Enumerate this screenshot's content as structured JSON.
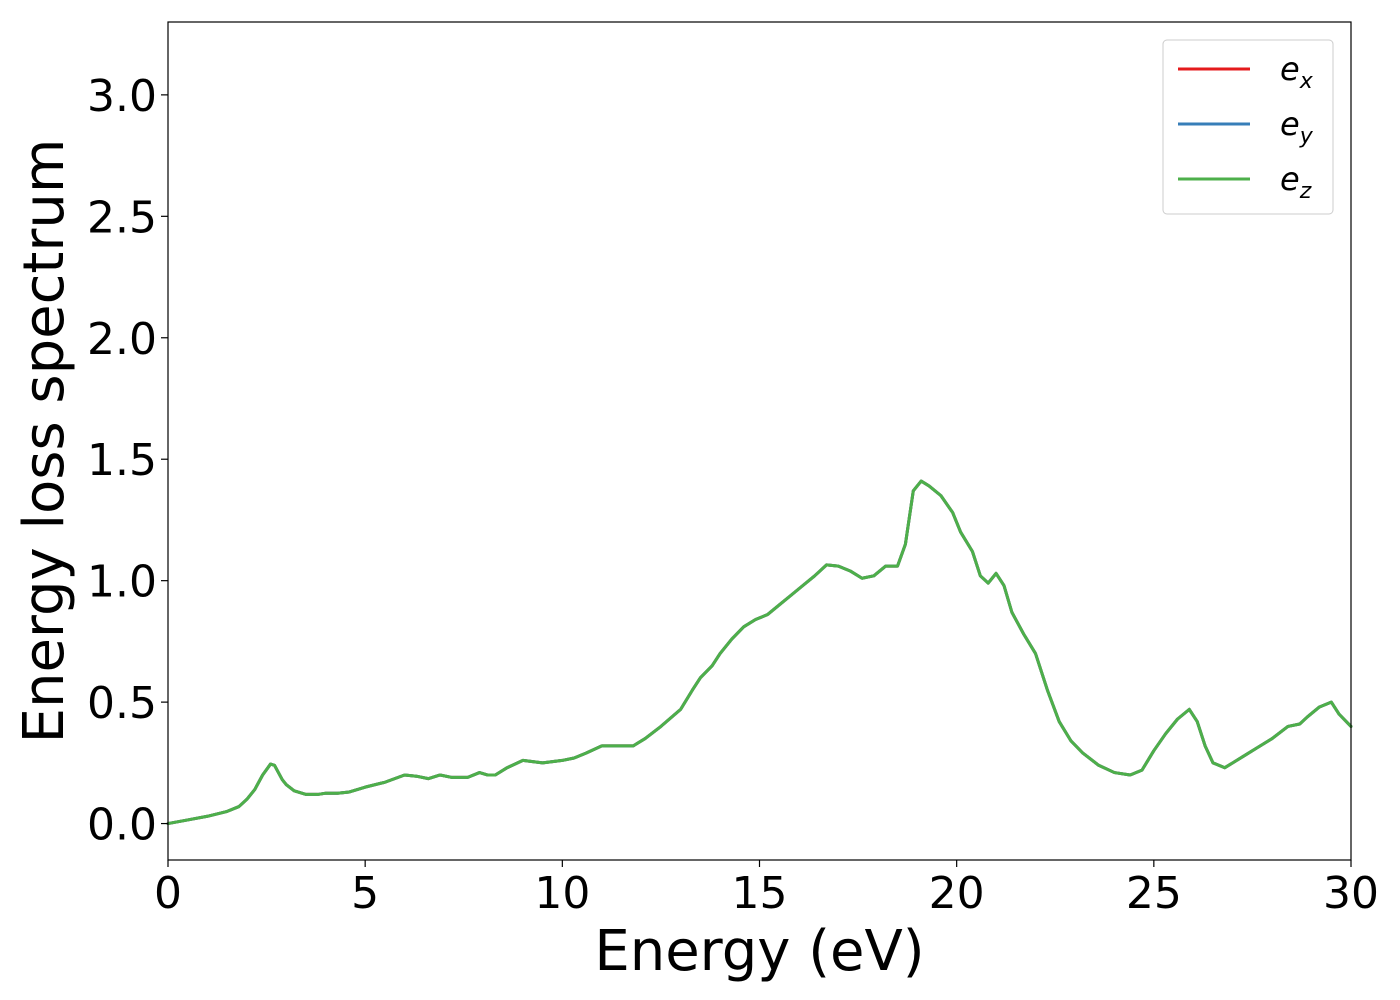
{
  "chart_data": {
    "type": "line",
    "xlabel": "Energy (eV)",
    "ylabel": "Energy loss spectrum",
    "xlim": [
      0,
      30
    ],
    "ylim": [
      -0.15,
      3.3
    ],
    "xticks": [
      0,
      5,
      10,
      15,
      20,
      25,
      30
    ],
    "xtick_labels": [
      "0",
      "5",
      "10",
      "15",
      "20",
      "25",
      "30"
    ],
    "yticks": [
      0.0,
      0.5,
      1.0,
      1.5,
      2.0,
      2.5,
      3.0
    ],
    "ytick_labels": [
      "0.0",
      "0.5",
      "1.0",
      "1.5",
      "2.0",
      "2.5",
      "3.0"
    ],
    "grid": false,
    "legend_position": "top-right",
    "series": [
      {
        "name": "e",
        "subscript": "x",
        "color": "#e41a1c",
        "x": [
          0,
          0.5,
          1.0,
          1.5,
          1.8,
          2.0,
          2.2,
          2.4,
          2.6,
          2.7,
          2.8,
          2.9,
          3.0,
          3.2,
          3.5,
          3.8,
          4.0,
          4.3,
          4.6,
          4.8,
          5.0,
          5.5,
          6.0,
          6.3,
          6.6,
          6.9,
          7.2,
          7.6,
          7.9,
          8.1,
          8.3,
          8.6,
          9.0,
          9.5,
          10.0,
          10.3,
          10.6,
          11.0,
          11.4,
          11.8,
          12.1,
          12.5,
          13.0,
          13.3,
          13.5,
          13.8,
          14.0,
          14.3,
          14.6,
          14.9,
          15.2,
          15.5,
          15.8,
          16.1,
          16.4,
          16.7,
          17.0,
          17.3,
          17.6,
          17.9,
          18.2,
          18.5,
          18.7,
          18.9,
          19.1,
          19.3,
          19.6,
          19.9,
          20.1,
          20.4,
          20.6,
          20.8,
          21.0,
          21.2,
          21.4,
          21.7,
          22.0,
          22.3,
          22.6,
          22.9,
          23.2,
          23.6,
          24.0,
          24.4,
          24.7,
          25.0,
          25.3,
          25.6,
          25.9,
          26.1,
          26.3,
          26.5,
          26.8,
          27.0,
          27.3,
          27.6,
          28.0,
          28.4,
          28.7,
          28.9,
          29.2,
          29.5,
          29.7,
          30.0
        ],
        "y": [
          0.0,
          0.015,
          0.03,
          0.05,
          0.07,
          0.1,
          0.14,
          0.2,
          0.245,
          0.24,
          0.21,
          0.18,
          0.16,
          0.135,
          0.12,
          0.12,
          0.125,
          0.125,
          0.13,
          0.14,
          0.15,
          0.17,
          0.2,
          0.195,
          0.185,
          0.2,
          0.19,
          0.19,
          0.21,
          0.2,
          0.2,
          0.23,
          0.26,
          0.25,
          0.26,
          0.27,
          0.29,
          0.32,
          0.32,
          0.32,
          0.35,
          0.4,
          0.47,
          0.55,
          0.6,
          0.65,
          0.7,
          0.76,
          0.81,
          0.84,
          0.86,
          0.9,
          0.94,
          0.98,
          1.02,
          1.065,
          1.06,
          1.04,
          1.01,
          1.02,
          1.06,
          1.06,
          1.15,
          1.37,
          1.41,
          1.39,
          1.35,
          1.28,
          1.2,
          1.12,
          1.02,
          0.99,
          1.03,
          0.98,
          0.87,
          0.78,
          0.7,
          0.55,
          0.42,
          0.34,
          0.29,
          0.24,
          0.21,
          0.2,
          0.22,
          0.3,
          0.37,
          0.43,
          0.47,
          0.42,
          0.32,
          0.25,
          0.23,
          0.25,
          0.28,
          0.31,
          0.35,
          0.4,
          0.41,
          0.44,
          0.48,
          0.5,
          0.45,
          0.4
        ]
      },
      {
        "name": "e",
        "subscript": "y",
        "color": "#377eb8",
        "x": [
          0,
          0.5,
          1.0,
          1.5,
          1.8,
          2.0,
          2.2,
          2.4,
          2.6,
          2.7,
          2.8,
          2.9,
          3.0,
          3.2,
          3.5,
          3.8,
          4.0,
          4.3,
          4.6,
          4.8,
          5.0,
          5.5,
          6.0,
          6.3,
          6.6,
          6.9,
          7.2,
          7.6,
          7.9,
          8.1,
          8.3,
          8.6,
          9.0,
          9.5,
          10.0,
          10.3,
          10.6,
          11.0,
          11.4,
          11.8,
          12.1,
          12.5,
          13.0,
          13.3,
          13.5,
          13.8,
          14.0,
          14.3,
          14.6,
          14.9,
          15.2,
          15.5,
          15.8,
          16.1,
          16.4,
          16.7,
          17.0,
          17.3,
          17.6,
          17.9,
          18.2,
          18.5,
          18.7,
          18.9,
          19.1,
          19.3,
          19.6,
          19.9,
          20.1,
          20.4,
          20.6,
          20.8,
          21.0,
          21.2,
          21.4,
          21.7,
          22.0,
          22.3,
          22.6,
          22.9,
          23.2,
          23.6,
          24.0,
          24.4,
          24.7,
          25.0,
          25.3,
          25.6,
          25.9,
          26.1,
          26.3,
          26.5,
          26.8,
          27.0,
          27.3,
          27.6,
          28.0,
          28.4,
          28.7,
          28.9,
          29.2,
          29.5,
          29.7,
          30.0
        ],
        "y": [
          0.0,
          0.015,
          0.03,
          0.05,
          0.07,
          0.1,
          0.14,
          0.2,
          0.245,
          0.24,
          0.21,
          0.18,
          0.16,
          0.135,
          0.12,
          0.12,
          0.125,
          0.125,
          0.13,
          0.14,
          0.15,
          0.17,
          0.2,
          0.195,
          0.185,
          0.2,
          0.19,
          0.19,
          0.21,
          0.2,
          0.2,
          0.23,
          0.26,
          0.25,
          0.26,
          0.27,
          0.29,
          0.32,
          0.32,
          0.32,
          0.35,
          0.4,
          0.47,
          0.55,
          0.6,
          0.65,
          0.7,
          0.76,
          0.81,
          0.84,
          0.86,
          0.9,
          0.94,
          0.98,
          1.02,
          1.065,
          1.06,
          1.04,
          1.01,
          1.02,
          1.06,
          1.06,
          1.15,
          1.37,
          1.41,
          1.39,
          1.35,
          1.28,
          1.2,
          1.12,
          1.02,
          0.99,
          1.03,
          0.98,
          0.87,
          0.78,
          0.7,
          0.55,
          0.42,
          0.34,
          0.29,
          0.24,
          0.21,
          0.2,
          0.22,
          0.3,
          0.37,
          0.43,
          0.47,
          0.42,
          0.32,
          0.25,
          0.23,
          0.25,
          0.28,
          0.31,
          0.35,
          0.4,
          0.41,
          0.44,
          0.48,
          0.5,
          0.45,
          0.4
        ]
      },
      {
        "name": "e",
        "subscript": "z",
        "color": "#4daf4a",
        "x": [
          0,
          0.5,
          1.0,
          1.5,
          1.8,
          2.0,
          2.2,
          2.4,
          2.6,
          2.7,
          2.8,
          2.9,
          3.0,
          3.2,
          3.5,
          3.8,
          4.0,
          4.3,
          4.6,
          4.8,
          5.0,
          5.5,
          6.0,
          6.3,
          6.6,
          6.9,
          7.2,
          7.6,
          7.9,
          8.1,
          8.3,
          8.6,
          9.0,
          9.5,
          10.0,
          10.3,
          10.6,
          11.0,
          11.4,
          11.8,
          12.1,
          12.5,
          13.0,
          13.3,
          13.5,
          13.8,
          14.0,
          14.3,
          14.6,
          14.9,
          15.2,
          15.5,
          15.8,
          16.1,
          16.4,
          16.7,
          17.0,
          17.3,
          17.6,
          17.9,
          18.2,
          18.5,
          18.7,
          18.9,
          19.1,
          19.3,
          19.6,
          19.9,
          20.1,
          20.4,
          20.6,
          20.8,
          21.0,
          21.2,
          21.4,
          21.7,
          22.0,
          22.3,
          22.6,
          22.9,
          23.2,
          23.6,
          24.0,
          24.4,
          24.7,
          25.0,
          25.3,
          25.6,
          25.9,
          26.1,
          26.3,
          26.5,
          26.8,
          27.0,
          27.3,
          27.6,
          28.0,
          28.4,
          28.7,
          28.9,
          29.2,
          29.5,
          29.7,
          30.0
        ],
        "y": [
          0.0,
          0.015,
          0.03,
          0.05,
          0.07,
          0.1,
          0.14,
          0.2,
          0.245,
          0.24,
          0.21,
          0.18,
          0.16,
          0.135,
          0.12,
          0.12,
          0.125,
          0.125,
          0.13,
          0.14,
          0.15,
          0.17,
          0.2,
          0.195,
          0.185,
          0.2,
          0.19,
          0.19,
          0.21,
          0.2,
          0.2,
          0.23,
          0.26,
          0.25,
          0.26,
          0.27,
          0.29,
          0.32,
          0.32,
          0.32,
          0.35,
          0.4,
          0.47,
          0.55,
          0.6,
          0.65,
          0.7,
          0.76,
          0.81,
          0.84,
          0.86,
          0.9,
          0.94,
          0.98,
          1.02,
          1.065,
          1.06,
          1.04,
          1.01,
          1.02,
          1.06,
          1.06,
          1.15,
          1.37,
          1.41,
          1.39,
          1.35,
          1.28,
          1.2,
          1.12,
          1.02,
          0.99,
          1.03,
          0.98,
          0.87,
          0.78,
          0.7,
          0.55,
          0.42,
          0.34,
          0.29,
          0.24,
          0.21,
          0.2,
          0.22,
          0.3,
          0.37,
          0.43,
          0.47,
          0.42,
          0.32,
          0.25,
          0.23,
          0.25,
          0.28,
          0.31,
          0.35,
          0.4,
          0.41,
          0.44,
          0.48,
          0.5,
          0.45,
          0.4
        ]
      }
    ]
  }
}
